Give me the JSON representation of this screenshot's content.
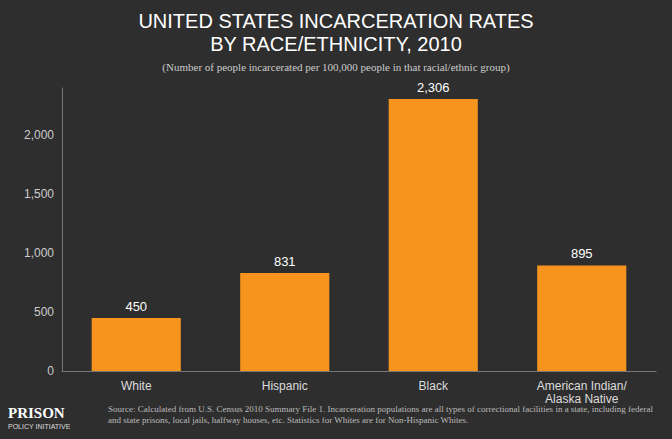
{
  "chart_data": {
    "type": "bar",
    "title": "UNITED STATES INCARCERATION RATES\nBY RACE/ETHNICITY, 2010",
    "subtitle": "(Number of people incarcerated per 100,000 people in that racial/ethnic group)",
    "categories": [
      "White",
      "Hispanic",
      "Black",
      "American Indian/\nAlaska Native"
    ],
    "values": [
      450,
      831,
      2306,
      895
    ],
    "value_labels": [
      "450",
      "831",
      "2,306",
      "895"
    ],
    "data_labels": true,
    "color": "#f7941d",
    "ylim": [
      0,
      2400
    ],
    "yticks": [
      0,
      500,
      {
        "value": 1000,
        "label": "1,000"
      },
      {
        "value": 1500,
        "label": "1,500"
      },
      {
        "value": 2000,
        "label": "2,000"
      }
    ],
    "grid": false,
    "annotations": {
      "source": "Source: Calculated from U.S. Census 2010 Summary File 1. Incarceration populations are all types of correctional facilities in a state, including federal and state prisons, local jails, halfway houses, etc. Statistics for Whites are for Non-Hispanic Whites.",
      "logo": "PRISON",
      "logo_sub": "POLICY INITIATIVE"
    }
  }
}
